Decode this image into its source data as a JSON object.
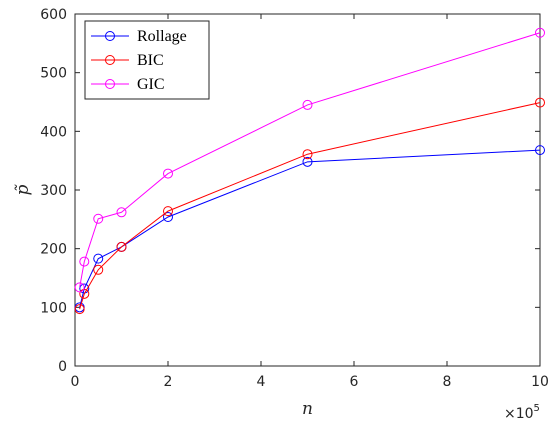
{
  "chart_data": {
    "type": "line",
    "xlabel": "n",
    "ylabel": "p̃",
    "xlim": [
      0,
      10
    ],
    "ylim": [
      0,
      600
    ],
    "x_ticks": [
      "0",
      "2",
      "4",
      "6",
      "8",
      "10"
    ],
    "y_ticks": [
      "0",
      "100",
      "200",
      "300",
      "400",
      "500",
      "600"
    ],
    "x_multiplier": {
      "base": "×10",
      "exponent": "5"
    },
    "grid": false,
    "legend_position": "top-left",
    "series": [
      {
        "name": "Rollage",
        "color": "#0000ff",
        "marker": "circle",
        "x": [
          0.1,
          0.2,
          0.5,
          1,
          2,
          5,
          10
        ],
        "y": [
          100,
          132,
          183,
          203,
          254,
          348,
          368
        ]
      },
      {
        "name": "BIC",
        "color": "#ff0000",
        "marker": "circle",
        "x": [
          0.1,
          0.2,
          0.5,
          1,
          2,
          5,
          10
        ],
        "y": [
          97,
          123,
          164,
          203,
          264,
          361,
          449
        ]
      },
      {
        "name": "GIC",
        "color": "#ff00ff",
        "marker": "circle",
        "x": [
          0.1,
          0.2,
          0.5,
          1,
          2,
          5,
          10
        ],
        "y": [
          134,
          178,
          251,
          262,
          328,
          445,
          568
        ]
      }
    ]
  }
}
